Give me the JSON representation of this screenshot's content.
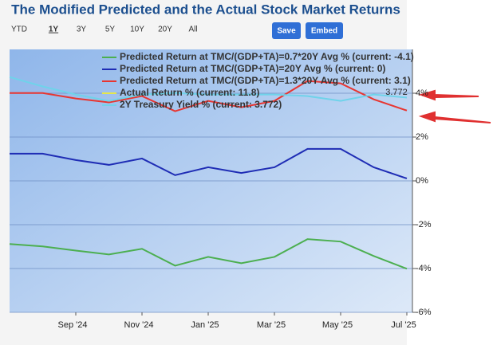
{
  "chart_data": {
    "type": "line",
    "title": "The Modified Predicted and the Actual Stock Market Returns",
    "range_buttons": [
      "YTD",
      "1Y",
      "3Y",
      "5Y",
      "10Y",
      "20Y",
      "All"
    ],
    "selected_range": "1Y",
    "action_buttons": [
      "Save",
      "Embed"
    ],
    "categories": [
      null,
      null,
      "Sep '24",
      null,
      "Nov '24",
      null,
      "Jan '25",
      null,
      "Mar '25",
      null,
      "May '25",
      null,
      "Jul '25"
    ],
    "series": [
      {
        "name": "Predicted Return at TMC/(GDP+TA)=0.7*20Y Avg % (current: -4.1)",
        "color": "#4caf50",
        "values": [
          -2.88,
          -2.99,
          -3.18,
          -3.36,
          -3.1,
          -3.87,
          -3.47,
          -3.76,
          -3.47,
          -2.66,
          -2.77,
          -3.43,
          -4.01
        ]
      },
      {
        "name": "Predicted Return at TMC/(GDP+TA)=20Y Avg % (current: 0)",
        "color": "#1f2db5",
        "values": [
          1.24,
          1.24,
          0.95,
          0.73,
          1.02,
          0.26,
          0.62,
          0.36,
          0.62,
          1.46,
          1.46,
          0.62,
          0.11
        ]
      },
      {
        "name": "Predicted Return at TMC/(GDP+TA)=1.3*20Y Avg % (current: 3.1)",
        "color": "#e83530",
        "values": [
          4.01,
          4.01,
          3.76,
          3.58,
          3.87,
          3.18,
          3.65,
          3.36,
          3.65,
          4.56,
          4.45,
          3.72,
          3.21
        ]
      },
      {
        "name": "Actual Return % (current: 11.8)",
        "color": "#e6e64a",
        "values": [
          null,
          null,
          null,
          null,
          null,
          null,
          null,
          null,
          null,
          null,
          null,
          null,
          null
        ]
      },
      {
        "name": "2Y Treasury Yield % (current: 3.772)",
        "color": "#6fd3ea",
        "values": [
          4.74,
          4.31,
          3.94,
          3.65,
          3.94,
          4.01,
          3.94,
          3.94,
          3.94,
          3.87,
          3.65,
          3.94,
          3.8
        ]
      }
    ],
    "end_label": "3.772",
    "ylim": [
      -6,
      6
    ],
    "yticks": [
      {
        "value": -6,
        "label": "-6%"
      },
      {
        "value": -4,
        "label": "-4%"
      },
      {
        "value": -2,
        "label": "-2%"
      },
      {
        "value": 0,
        "label": "0%"
      },
      {
        "value": 2,
        "label": "2%"
      },
      {
        "value": 4,
        "label": "4%"
      }
    ],
    "grid": true,
    "axis_side": "right"
  }
}
